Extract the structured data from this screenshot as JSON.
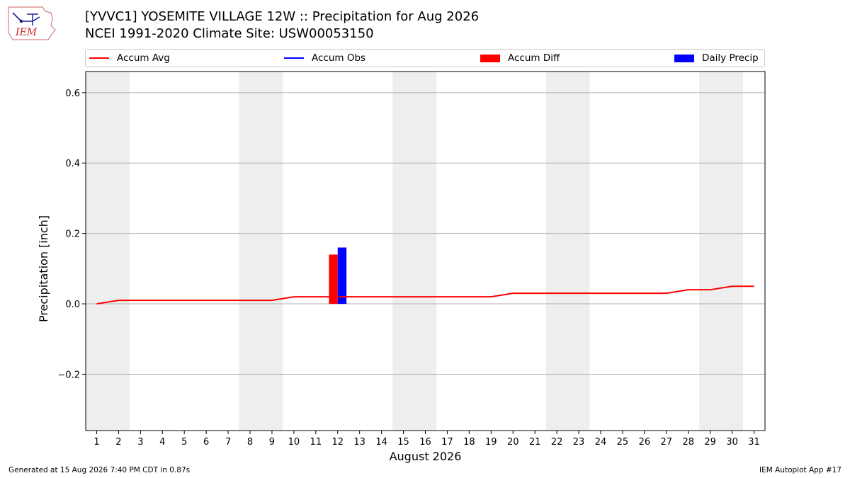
{
  "header": {
    "logo_text": "IEM",
    "title_line1": "[YVVC1] YOSEMITE VILLAGE 12W :: Precipitation for Aug 2026",
    "title_line2": "NCEI 1991-2020 Climate Site: USW00053150"
  },
  "footer": {
    "generated": "Generated at 15 Aug 2026 7:40 PM CDT in 0.87s",
    "app": "IEM Autoplot App #17"
  },
  "colors": {
    "accum_avg": "#ff0000",
    "accum_obs": "#0000ff",
    "accum_diff": "#ff0000",
    "daily_precip": "#0000ff",
    "weekend_shade": "#eeeeee",
    "grid": "#b0b0b0"
  },
  "chart_data": {
    "type": "line",
    "xlabel": "August 2026",
    "ylabel": "Precipitation [inch]",
    "xlim": [
      0.5,
      31.5
    ],
    "ylim": [
      -0.36,
      0.66
    ],
    "x_ticks": [
      1,
      2,
      3,
      4,
      5,
      6,
      7,
      8,
      9,
      10,
      11,
      12,
      13,
      14,
      15,
      16,
      17,
      18,
      19,
      20,
      21,
      22,
      23,
      24,
      25,
      26,
      27,
      28,
      29,
      30,
      31
    ],
    "y_ticks": [
      {
        "value": 0.6,
        "label": "0.6"
      },
      {
        "value": 0.4,
        "label": "0.4"
      },
      {
        "value": 0.2,
        "label": "0.2"
      },
      {
        "value": 0.0,
        "label": "0.0"
      },
      {
        "value": -0.2,
        "label": "−0.2"
      }
    ],
    "grid": "horizontal",
    "legend": {
      "placement": "top",
      "items": [
        {
          "label": "Accum Avg",
          "kind": "line",
          "color": "#ff0000"
        },
        {
          "label": "Accum Obs",
          "kind": "line",
          "color": "#0000ff"
        },
        {
          "label": "Accum Diff",
          "kind": "bar",
          "color": "#ff0000"
        },
        {
          "label": "Daily Precip",
          "kind": "bar",
          "color": "#0000ff"
        }
      ]
    },
    "weekend_days": [
      1,
      2,
      8,
      9,
      15,
      16,
      22,
      23,
      29,
      30
    ],
    "series": [
      {
        "name": "Accum Avg",
        "kind": "line",
        "x": [
          1,
          2,
          3,
          4,
          5,
          6,
          7,
          8,
          9,
          10,
          11,
          12,
          13,
          14,
          15,
          16,
          17,
          18,
          19,
          20,
          21,
          22,
          23,
          24,
          25,
          26,
          27,
          28,
          29,
          30,
          31
        ],
        "values": [
          0.0,
          0.01,
          0.01,
          0.01,
          0.01,
          0.01,
          0.01,
          0.01,
          0.01,
          0.02,
          0.02,
          0.02,
          0.02,
          0.02,
          0.02,
          0.02,
          0.02,
          0.02,
          0.02,
          0.03,
          0.03,
          0.03,
          0.03,
          0.03,
          0.03,
          0.03,
          0.03,
          0.04,
          0.04,
          0.05,
          0.05
        ]
      },
      {
        "name": "Accum Diff",
        "kind": "bar",
        "x": [
          12
        ],
        "values": [
          0.14
        ]
      },
      {
        "name": "Daily Precip",
        "kind": "bar",
        "x": [
          12
        ],
        "values": [
          0.16
        ]
      }
    ]
  }
}
